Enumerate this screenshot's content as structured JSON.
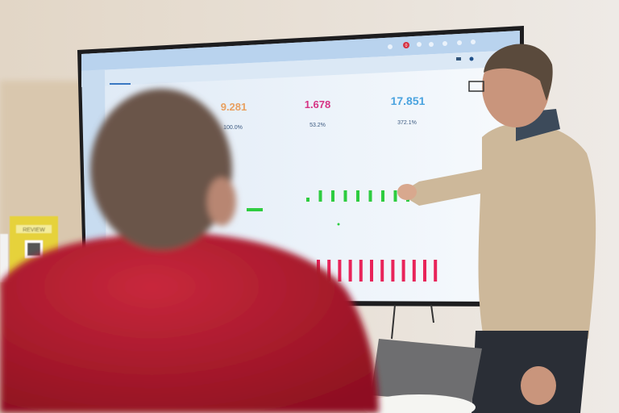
{
  "screen": {
    "kpis": [
      {
        "value": "9.281",
        "percent": "100.0%",
        "color": "#e8a060"
      },
      {
        "value": "1.678",
        "percent": "53.2%",
        "color": "#d63384"
      },
      {
        "value": "17.851",
        "percent": "372.1%",
        "color": "#4aa3df"
      }
    ],
    "notification_count": "0",
    "chart_colors": {
      "green": "#2ecc40",
      "pink": "#e8245a"
    }
  },
  "booklet": {
    "label": "REVIEW",
    "color": "#e6d23a"
  },
  "colors": {
    "wall": "#e9e3dc",
    "red_shirt": "#b3182f",
    "sweater": "#cdb89a"
  }
}
